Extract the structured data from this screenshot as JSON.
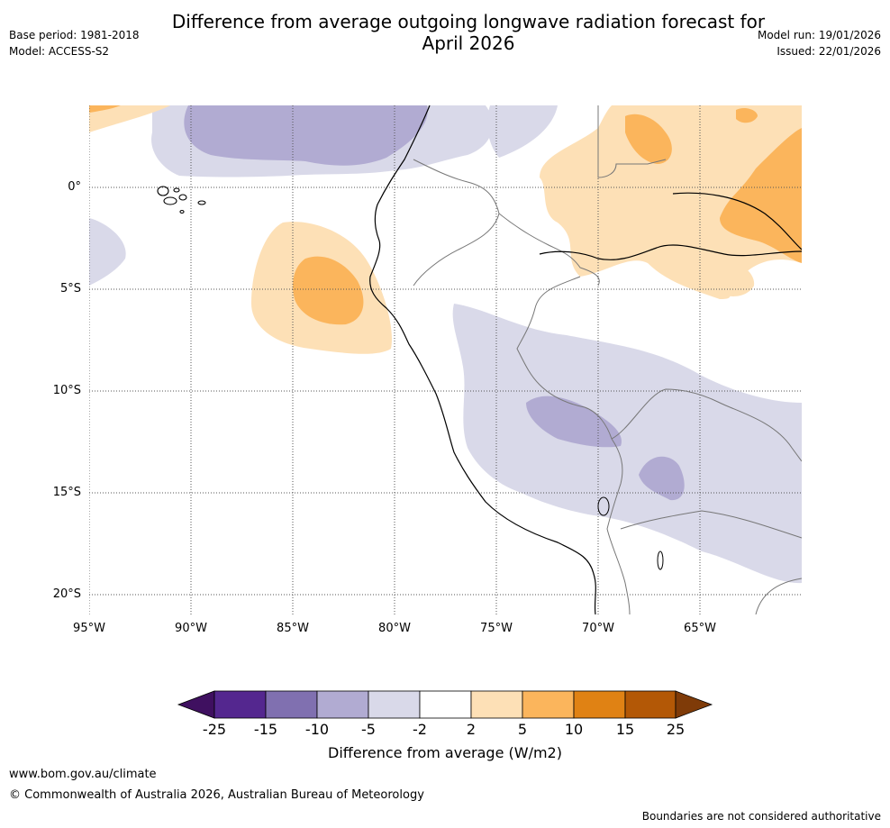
{
  "title_line1": "Difference from average outgoing longwave radiation forecast for",
  "title_line2": "April 2026",
  "base_period": "Base period: 1981-2018",
  "model": "Model: ACCESS-S2",
  "model_run": "Model run: 19/01/2026",
  "issued": "Issued: 22/01/2026",
  "map": {
    "lat_labels": [
      "0°",
      "5°S",
      "10°S",
      "15°S",
      "20°S"
    ],
    "lon_labels": [
      "95°W",
      "90°W",
      "85°W",
      "80°W",
      "75°W",
      "70°W",
      "65°W"
    ]
  },
  "colorbar": {
    "label": "Difference from average (W/m2)",
    "ticks": [
      "-25",
      "-15",
      "-10",
      "-5",
      "-2",
      "2",
      "5",
      "10",
      "15",
      "25"
    ],
    "colors": [
      "#3f1060",
      "#54278f",
      "#8070b0",
      "#b1abd2",
      "#d9d9e9",
      "#ffffff",
      "#fde0b6",
      "#fbb55c",
      "#e08214",
      "#b35806",
      "#7f3b08"
    ]
  },
  "footer": {
    "url": "www.bom.gov.au/climate",
    "copyright": "© Commonwealth of Australia 2026, Australian Bureau of Meteorology",
    "note": "Boundaries are not considered authoritative"
  }
}
